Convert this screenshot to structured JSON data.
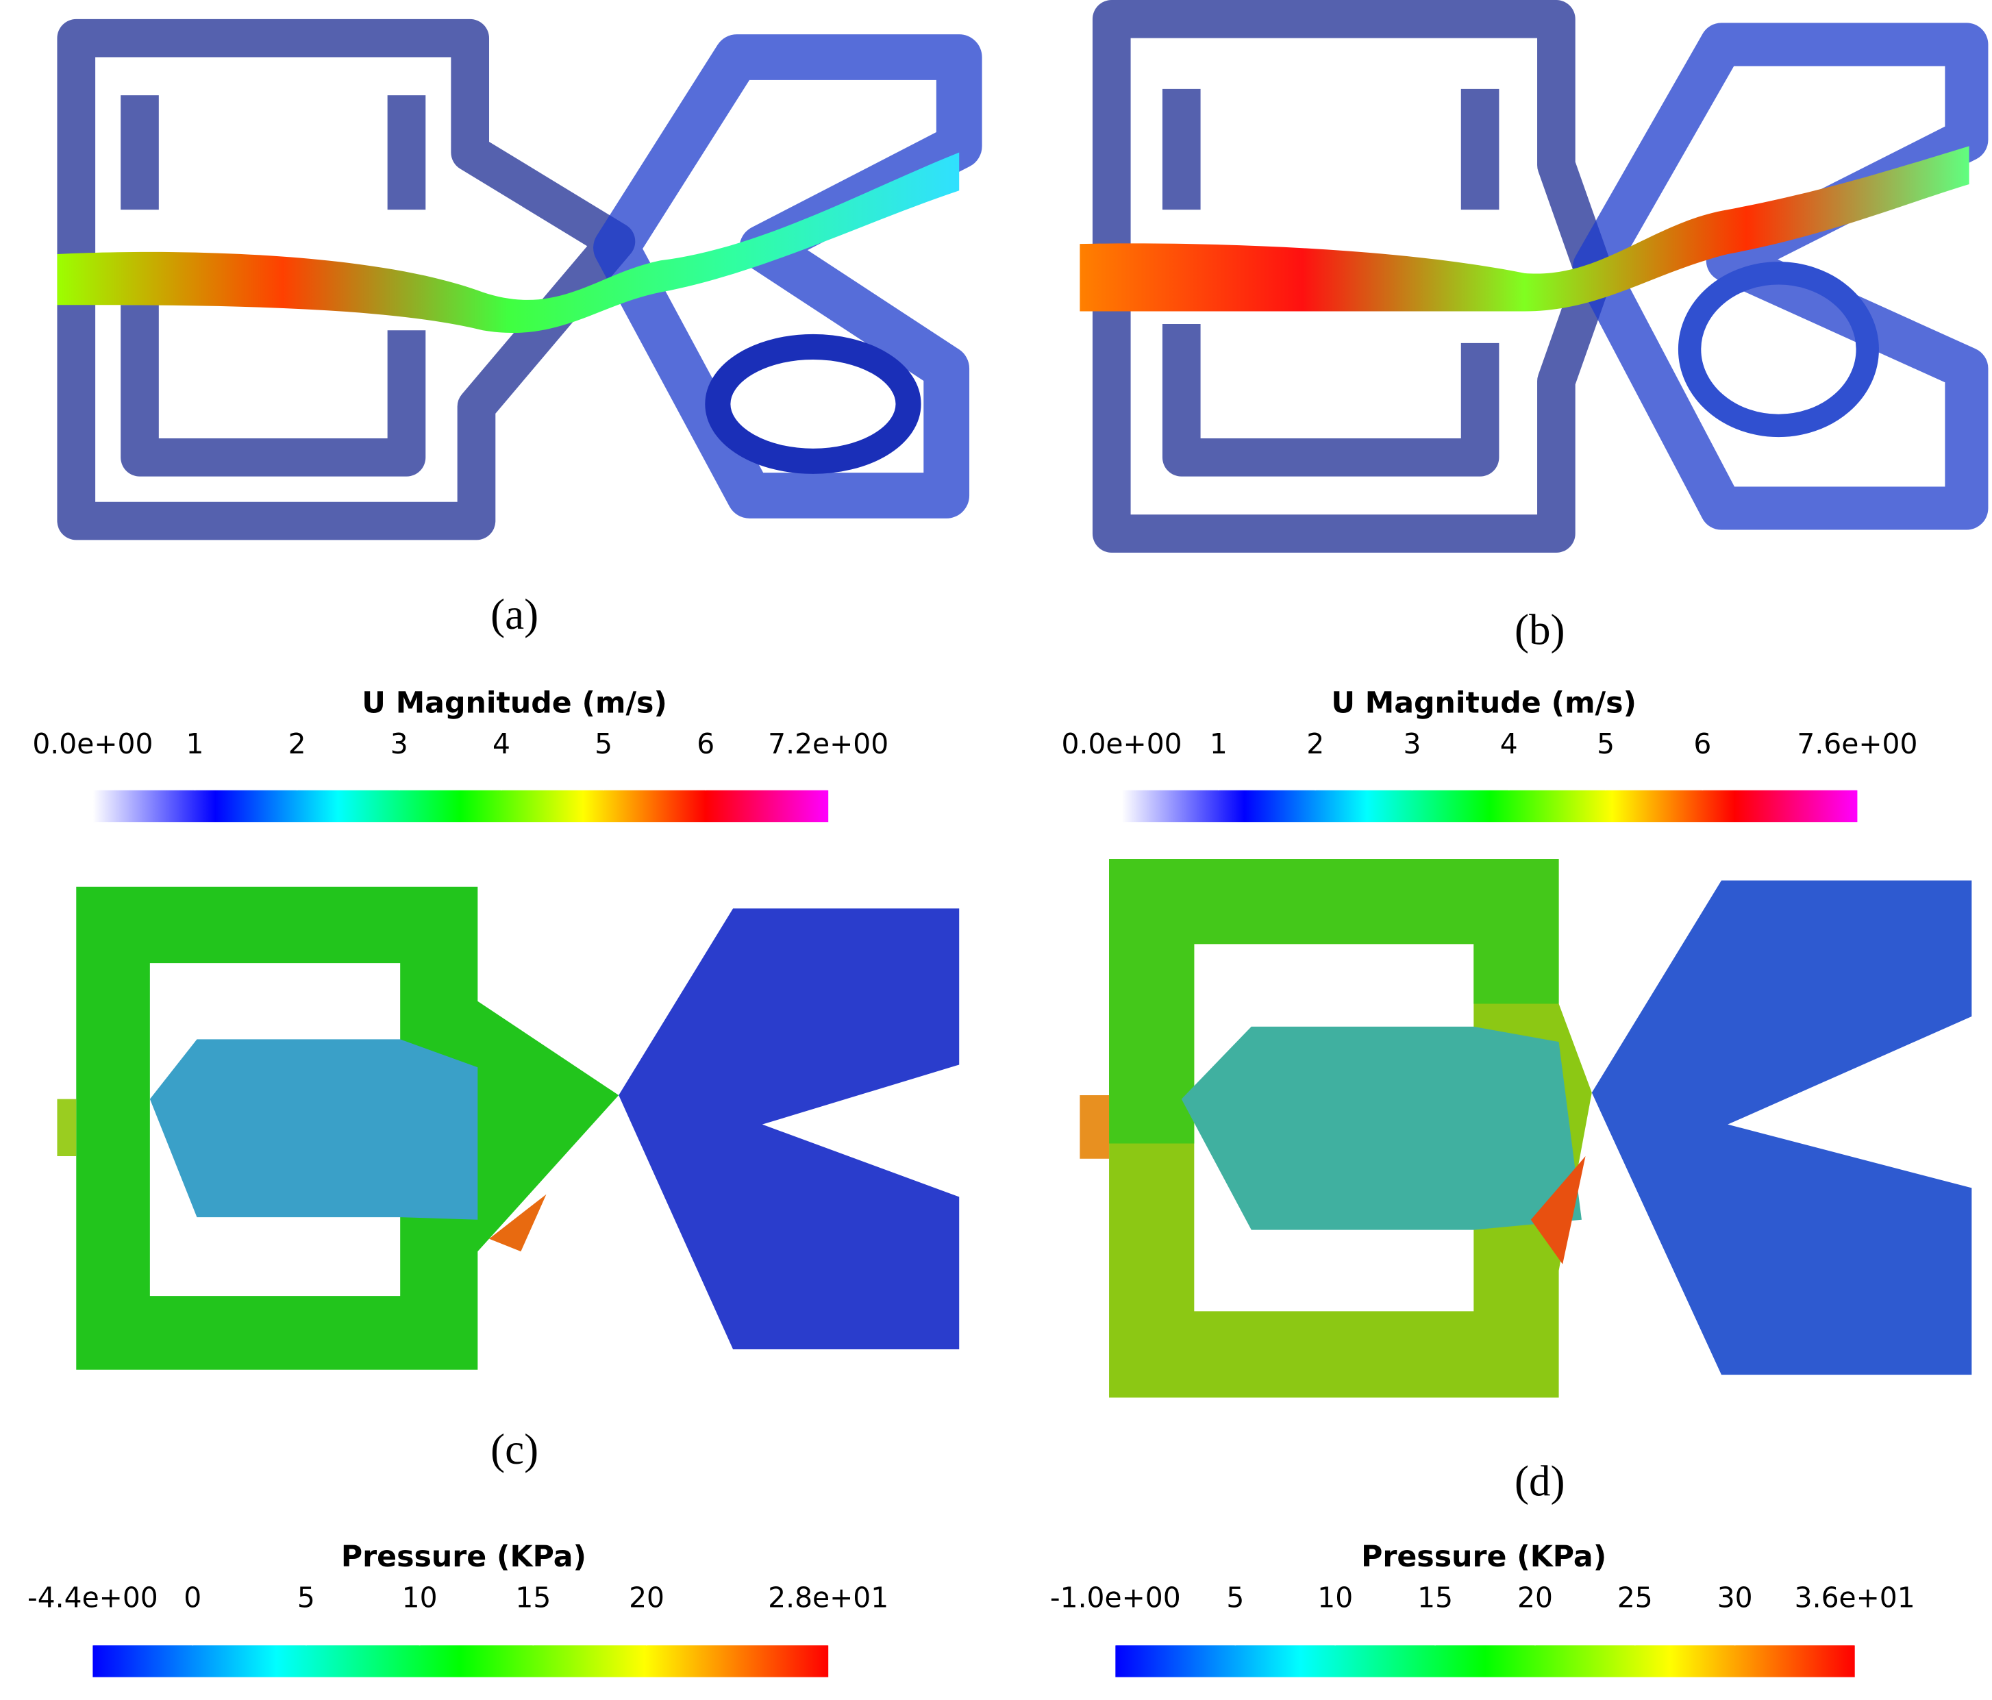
{
  "panels": [
    {
      "label": "(a)"
    },
    {
      "label": "(b)"
    },
    {
      "label": "(c)"
    },
    {
      "label": "(d)"
    }
  ],
  "colorbars": [
    {
      "title": "U Magnitude (m/s)",
      "range": [
        0,
        7.2
      ],
      "ticks": [
        {
          "value": 0,
          "label": "0.0e+00"
        },
        1,
        2,
        3,
        4,
        5,
        6,
        {
          "value": 7.2,
          "label": "7.2e+00"
        }
      ],
      "colors": [
        "#ffffff",
        "#0000ff",
        "#00ffff",
        "#00ff00",
        "#ffff00",
        "#ff0000",
        "#ff00ff"
      ]
    },
    {
      "title": "U Magnitude (m/s)",
      "range": [
        0,
        7.6
      ],
      "ticks": [
        {
          "value": 0,
          "label": "0.0e+00"
        },
        1,
        2,
        3,
        4,
        5,
        6,
        {
          "value": 7.6,
          "label": "7.6e+00"
        }
      ],
      "colors": [
        "#ffffff",
        "#0000ff",
        "#00ffff",
        "#00ff00",
        "#ffff00",
        "#ff0000",
        "#ff00ff"
      ]
    },
    {
      "title": "Pressure (KPa)",
      "range": [
        -4.4,
        28
      ],
      "ticks": [
        {
          "value": -4.4,
          "label": "-4.4e+00"
        },
        0,
        5,
        10,
        15,
        20,
        {
          "value": 28,
          "label": "2.8e+01"
        }
      ],
      "colors": [
        "#0000ff",
        "#00ffff",
        "#00ff00",
        "#ffff00",
        "#ff0000"
      ]
    },
    {
      "title": "Pressure (KPa)",
      "range": [
        -1,
        36
      ],
      "ticks": [
        {
          "value": -1,
          "label": "-1.0e+00"
        },
        5,
        10,
        15,
        20,
        25,
        30,
        {
          "value": 36,
          "label": "3.6e+01"
        }
      ],
      "colors": [
        "#0000ff",
        "#00ffff",
        "#00ff00",
        "#ffff00",
        "#ff0000"
      ]
    }
  ]
}
